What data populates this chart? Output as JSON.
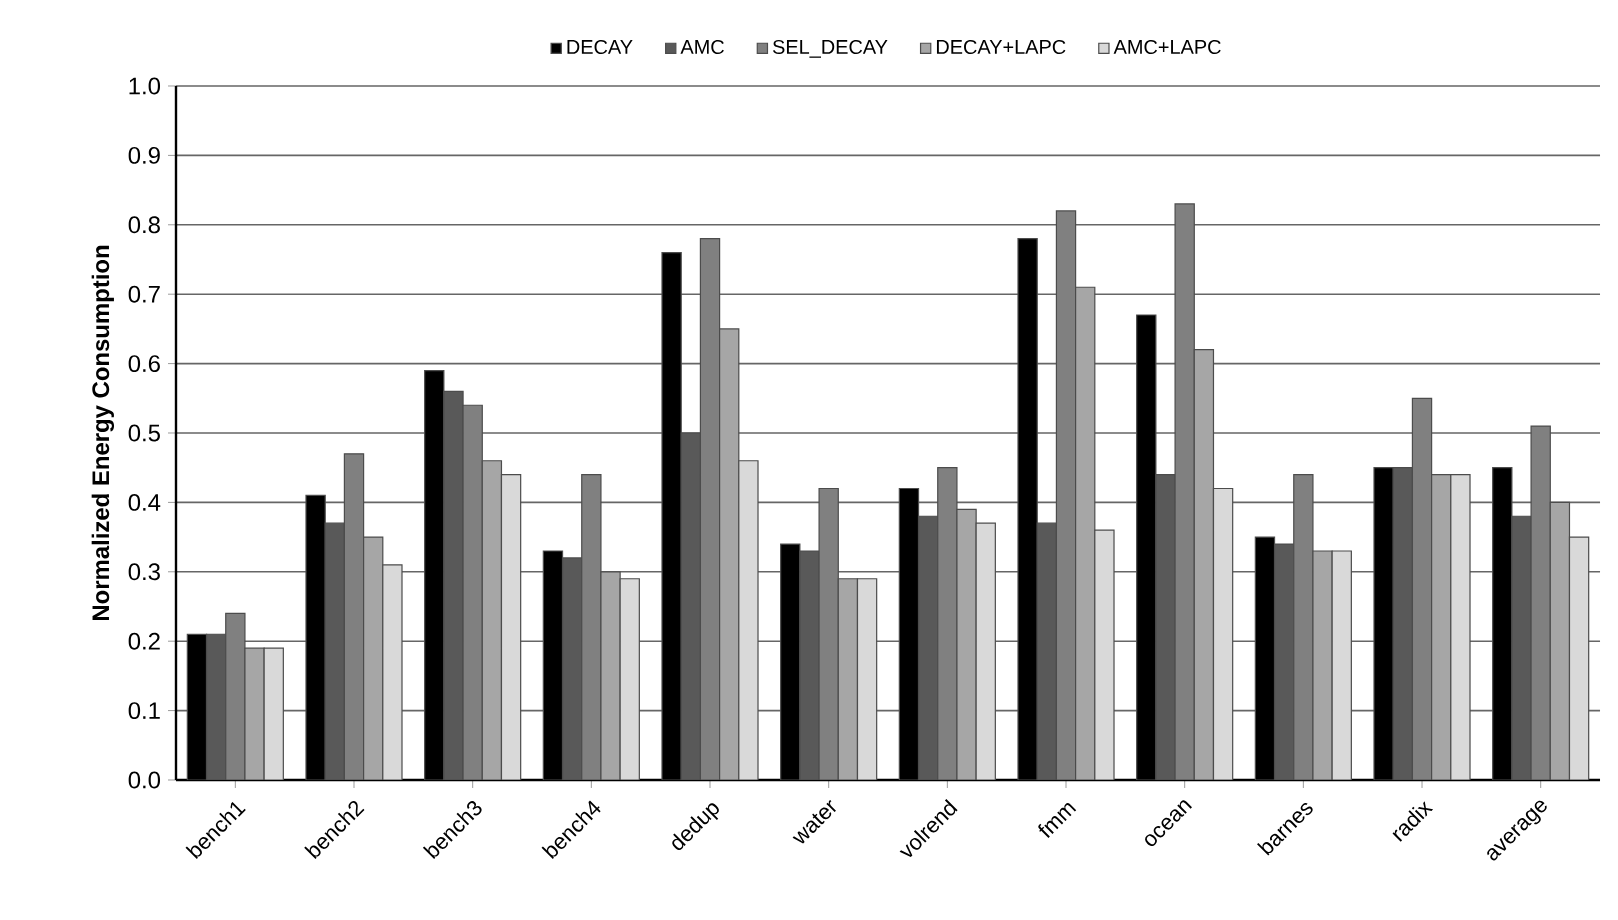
{
  "chart_data": {
    "type": "bar",
    "ylabel": "Normalized Energy Consumption",
    "categories": [
      "bench1",
      "bench2",
      "bench3",
      "bench4",
      "dedup",
      "water",
      "volrend",
      "fmm",
      "ocean",
      "barnes",
      "radix",
      "average"
    ],
    "series": [
      {
        "name": "DECAY",
        "color": "#000000",
        "values": [
          0.21,
          0.41,
          0.59,
          0.33,
          0.76,
          0.34,
          0.42,
          0.78,
          0.67,
          0.35,
          0.45,
          0.45
        ]
      },
      {
        "name": "AMC",
        "color": "#595959",
        "values": [
          0.21,
          0.37,
          0.56,
          0.32,
          0.5,
          0.33,
          0.38,
          0.37,
          0.44,
          0.34,
          0.45,
          0.38
        ]
      },
      {
        "name": "SEL_DECAY",
        "color": "#808080",
        "values": [
          0.24,
          0.47,
          0.54,
          0.44,
          0.78,
          0.42,
          0.45,
          0.82,
          0.83,
          0.44,
          0.55,
          0.51
        ]
      },
      {
        "name": "DECAY+LAPC",
        "color": "#a6a6a6",
        "values": [
          0.19,
          0.35,
          0.46,
          0.3,
          0.65,
          0.29,
          0.39,
          0.71,
          0.62,
          0.33,
          0.44,
          0.4
        ]
      },
      {
        "name": "AMC+LAPC",
        "color": "#d9d9d9",
        "values": [
          0.19,
          0.31,
          0.44,
          0.29,
          0.46,
          0.29,
          0.37,
          0.36,
          0.42,
          0.33,
          0.44,
          0.35
        ]
      }
    ],
    "ylim": [
      0,
      1
    ],
    "yticks": [
      {
        "value": 0,
        "label": "0.0"
      },
      {
        "value": 0.1,
        "label": "0.1"
      },
      {
        "value": 0.2,
        "label": "0.2"
      },
      {
        "value": 0.3,
        "label": "0.3"
      },
      {
        "value": 0.4,
        "label": "0.4"
      },
      {
        "value": 0.5,
        "label": "0.5"
      },
      {
        "value": 0.6,
        "label": "0.6"
      },
      {
        "value": 0.7,
        "label": "0.7"
      },
      {
        "value": 0.8,
        "label": "0.8"
      },
      {
        "value": 0.9,
        "label": "0.9"
      },
      {
        "value": 1,
        "label": "1.0"
      }
    ],
    "grid": "y",
    "legend": "top"
  }
}
